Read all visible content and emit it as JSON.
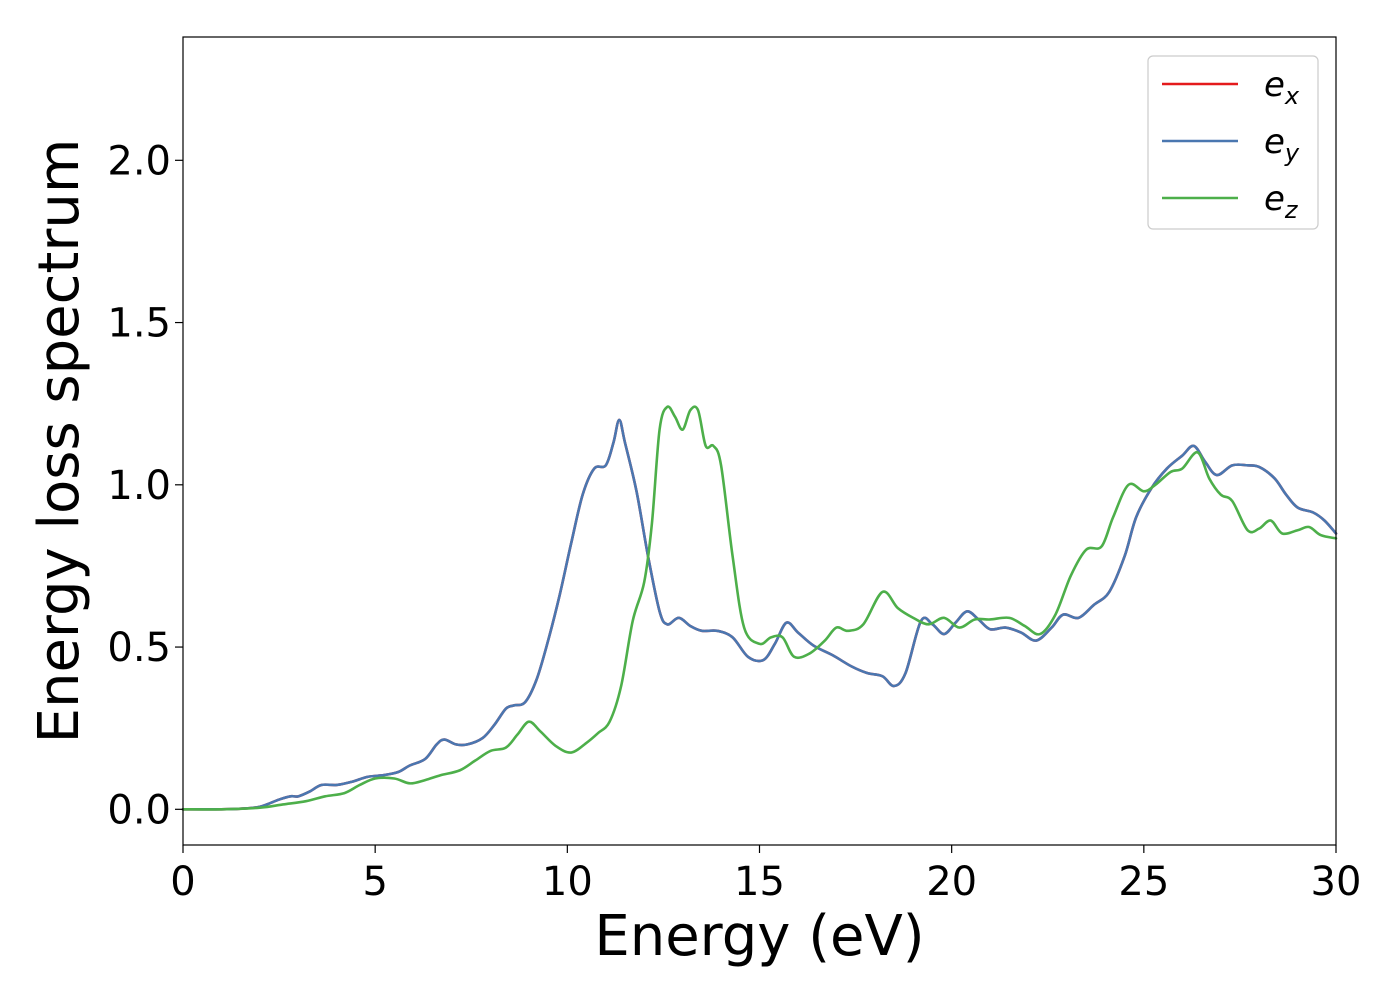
{
  "chart_data": {
    "type": "line",
    "xlabel": "Energy (eV)",
    "ylabel": "Energy loss spectrum",
    "xlim": [
      0,
      30
    ],
    "ylim": [
      -0.11,
      2.38
    ],
    "xticks": [
      "0",
      "5",
      "10",
      "15",
      "20",
      "25",
      "30"
    ],
    "yticks": [
      "0.0",
      "0.5",
      "1.0",
      "1.5",
      "2.0"
    ],
    "grid": false,
    "legend_position": "top-right",
    "series": [
      {
        "name": "e_x",
        "label_base": "e",
        "label_sub": "x",
        "color": "#e41a1c",
        "points": [
          [
            0,
            0
          ],
          [
            1,
            0
          ],
          [
            1.5,
            0.002
          ],
          [
            2,
            0.008
          ],
          [
            2.5,
            0.03
          ],
          [
            2.8,
            0.04
          ],
          [
            3,
            0.04
          ],
          [
            3.3,
            0.055
          ],
          [
            3.6,
            0.075
          ],
          [
            4,
            0.075
          ],
          [
            4.4,
            0.085
          ],
          [
            4.8,
            0.1
          ],
          [
            5.2,
            0.105
          ],
          [
            5.6,
            0.115
          ],
          [
            5.9,
            0.135
          ],
          [
            6.3,
            0.155
          ],
          [
            6.6,
            0.2
          ],
          [
            6.8,
            0.215
          ],
          [
            7.1,
            0.2
          ],
          [
            7.4,
            0.2
          ],
          [
            7.8,
            0.22
          ],
          [
            8.1,
            0.26
          ],
          [
            8.4,
            0.31
          ],
          [
            8.6,
            0.32
          ],
          [
            8.9,
            0.33
          ],
          [
            9.2,
            0.4
          ],
          [
            9.5,
            0.52
          ],
          [
            9.8,
            0.66
          ],
          [
            10.1,
            0.82
          ],
          [
            10.4,
            0.97
          ],
          [
            10.7,
            1.05
          ],
          [
            11,
            1.06
          ],
          [
            11.2,
            1.13
          ],
          [
            11.35,
            1.2
          ],
          [
            11.5,
            1.13
          ],
          [
            11.8,
            0.98
          ],
          [
            12.1,
            0.78
          ],
          [
            12.4,
            0.61
          ],
          [
            12.6,
            0.57
          ],
          [
            12.9,
            0.59
          ],
          [
            13.2,
            0.565
          ],
          [
            13.5,
            0.55
          ],
          [
            13.9,
            0.55
          ],
          [
            14.3,
            0.53
          ],
          [
            14.7,
            0.47
          ],
          [
            15.1,
            0.46
          ],
          [
            15.4,
            0.51
          ],
          [
            15.7,
            0.575
          ],
          [
            16,
            0.545
          ],
          [
            16.4,
            0.505
          ],
          [
            16.9,
            0.475
          ],
          [
            17.4,
            0.44
          ],
          [
            17.8,
            0.42
          ],
          [
            18.2,
            0.41
          ],
          [
            18.5,
            0.38
          ],
          [
            18.8,
            0.42
          ],
          [
            19.2,
            0.58
          ],
          [
            19.5,
            0.57
          ],
          [
            19.8,
            0.54
          ],
          [
            20.1,
            0.575
          ],
          [
            20.4,
            0.61
          ],
          [
            20.7,
            0.585
          ],
          [
            21,
            0.555
          ],
          [
            21.4,
            0.56
          ],
          [
            21.8,
            0.545
          ],
          [
            22.2,
            0.52
          ],
          [
            22.6,
            0.56
          ],
          [
            22.9,
            0.6
          ],
          [
            23.3,
            0.59
          ],
          [
            23.7,
            0.63
          ],
          [
            24.1,
            0.67
          ],
          [
            24.5,
            0.78
          ],
          [
            24.8,
            0.9
          ],
          [
            25.2,
            0.99
          ],
          [
            25.6,
            1.05
          ],
          [
            26,
            1.09
          ],
          [
            26.3,
            1.12
          ],
          [
            26.6,
            1.07
          ],
          [
            26.9,
            1.03
          ],
          [
            27.3,
            1.06
          ],
          [
            27.7,
            1.06
          ],
          [
            28,
            1.055
          ],
          [
            28.4,
            1.02
          ],
          [
            28.7,
            0.97
          ],
          [
            29,
            0.93
          ],
          [
            29.4,
            0.915
          ],
          [
            29.7,
            0.89
          ],
          [
            30,
            0.85
          ]
        ]
      },
      {
        "name": "e_y",
        "label_base": "e",
        "label_sub": "y",
        "color": "#4a77b0",
        "points": [
          [
            0,
            0
          ],
          [
            1,
            0
          ],
          [
            1.5,
            0.002
          ],
          [
            2,
            0.008
          ],
          [
            2.5,
            0.03
          ],
          [
            2.8,
            0.04
          ],
          [
            3,
            0.04
          ],
          [
            3.3,
            0.055
          ],
          [
            3.6,
            0.075
          ],
          [
            4,
            0.075
          ],
          [
            4.4,
            0.085
          ],
          [
            4.8,
            0.1
          ],
          [
            5.2,
            0.105
          ],
          [
            5.6,
            0.115
          ],
          [
            5.9,
            0.135
          ],
          [
            6.3,
            0.155
          ],
          [
            6.6,
            0.2
          ],
          [
            6.8,
            0.215
          ],
          [
            7.1,
            0.2
          ],
          [
            7.4,
            0.2
          ],
          [
            7.8,
            0.22
          ],
          [
            8.1,
            0.26
          ],
          [
            8.4,
            0.31
          ],
          [
            8.6,
            0.32
          ],
          [
            8.9,
            0.33
          ],
          [
            9.2,
            0.4
          ],
          [
            9.5,
            0.52
          ],
          [
            9.8,
            0.66
          ],
          [
            10.1,
            0.82
          ],
          [
            10.4,
            0.97
          ],
          [
            10.7,
            1.05
          ],
          [
            11,
            1.06
          ],
          [
            11.2,
            1.13
          ],
          [
            11.35,
            1.2
          ],
          [
            11.5,
            1.13
          ],
          [
            11.8,
            0.98
          ],
          [
            12.1,
            0.78
          ],
          [
            12.4,
            0.61
          ],
          [
            12.6,
            0.57
          ],
          [
            12.9,
            0.59
          ],
          [
            13.2,
            0.565
          ],
          [
            13.5,
            0.55
          ],
          [
            13.9,
            0.55
          ],
          [
            14.3,
            0.53
          ],
          [
            14.7,
            0.47
          ],
          [
            15.1,
            0.46
          ],
          [
            15.4,
            0.51
          ],
          [
            15.7,
            0.575
          ],
          [
            16,
            0.545
          ],
          [
            16.4,
            0.505
          ],
          [
            16.9,
            0.475
          ],
          [
            17.4,
            0.44
          ],
          [
            17.8,
            0.42
          ],
          [
            18.2,
            0.41
          ],
          [
            18.5,
            0.38
          ],
          [
            18.8,
            0.42
          ],
          [
            19.2,
            0.58
          ],
          [
            19.5,
            0.57
          ],
          [
            19.8,
            0.54
          ],
          [
            20.1,
            0.575
          ],
          [
            20.4,
            0.61
          ],
          [
            20.7,
            0.585
          ],
          [
            21,
            0.555
          ],
          [
            21.4,
            0.56
          ],
          [
            21.8,
            0.545
          ],
          [
            22.2,
            0.52
          ],
          [
            22.6,
            0.56
          ],
          [
            22.9,
            0.6
          ],
          [
            23.3,
            0.59
          ],
          [
            23.7,
            0.63
          ],
          [
            24.1,
            0.67
          ],
          [
            24.5,
            0.78
          ],
          [
            24.8,
            0.9
          ],
          [
            25.2,
            0.99
          ],
          [
            25.6,
            1.05
          ],
          [
            26,
            1.09
          ],
          [
            26.3,
            1.12
          ],
          [
            26.6,
            1.07
          ],
          [
            26.9,
            1.03
          ],
          [
            27.3,
            1.06
          ],
          [
            27.7,
            1.06
          ],
          [
            28,
            1.055
          ],
          [
            28.4,
            1.02
          ],
          [
            28.7,
            0.97
          ],
          [
            29,
            0.93
          ],
          [
            29.4,
            0.915
          ],
          [
            29.7,
            0.89
          ],
          [
            30,
            0.85
          ]
        ]
      },
      {
        "name": "e_z",
        "label_base": "e",
        "label_sub": "z",
        "color": "#4daf4a",
        "points": [
          [
            0,
            0
          ],
          [
            1,
            0
          ],
          [
            2,
            0.005
          ],
          [
            2.6,
            0.015
          ],
          [
            3.2,
            0.025
          ],
          [
            3.7,
            0.04
          ],
          [
            4.2,
            0.05
          ],
          [
            4.6,
            0.075
          ],
          [
            5,
            0.095
          ],
          [
            5.5,
            0.095
          ],
          [
            5.9,
            0.08
          ],
          [
            6.3,
            0.09
          ],
          [
            6.7,
            0.105
          ],
          [
            7.2,
            0.12
          ],
          [
            7.6,
            0.15
          ],
          [
            8,
            0.18
          ],
          [
            8.4,
            0.19
          ],
          [
            8.7,
            0.23
          ],
          [
            9,
            0.27
          ],
          [
            9.3,
            0.24
          ],
          [
            9.7,
            0.195
          ],
          [
            10.1,
            0.175
          ],
          [
            10.5,
            0.205
          ],
          [
            10.8,
            0.235
          ],
          [
            11.1,
            0.27
          ],
          [
            11.4,
            0.38
          ],
          [
            11.7,
            0.58
          ],
          [
            12,
            0.7
          ],
          [
            12.2,
            0.88
          ],
          [
            12.4,
            1.17
          ],
          [
            12.6,
            1.24
          ],
          [
            12.8,
            1.21
          ],
          [
            13,
            1.17
          ],
          [
            13.2,
            1.23
          ],
          [
            13.4,
            1.23
          ],
          [
            13.6,
            1.12
          ],
          [
            13.8,
            1.12
          ],
          [
            14,
            1.06
          ],
          [
            14.3,
            0.78
          ],
          [
            14.6,
            0.56
          ],
          [
            15,
            0.51
          ],
          [
            15.3,
            0.53
          ],
          [
            15.6,
            0.53
          ],
          [
            15.9,
            0.47
          ],
          [
            16.3,
            0.48
          ],
          [
            16.7,
            0.52
          ],
          [
            17,
            0.56
          ],
          [
            17.3,
            0.55
          ],
          [
            17.7,
            0.57
          ],
          [
            18.2,
            0.67
          ],
          [
            18.6,
            0.62
          ],
          [
            19,
            0.59
          ],
          [
            19.4,
            0.57
          ],
          [
            19.8,
            0.59
          ],
          [
            20.2,
            0.56
          ],
          [
            20.6,
            0.585
          ],
          [
            21,
            0.585
          ],
          [
            21.5,
            0.59
          ],
          [
            21.9,
            0.565
          ],
          [
            22.3,
            0.54
          ],
          [
            22.7,
            0.6
          ],
          [
            23.1,
            0.72
          ],
          [
            23.5,
            0.8
          ],
          [
            23.9,
            0.81
          ],
          [
            24.2,
            0.9
          ],
          [
            24.6,
            1
          ],
          [
            25,
            0.98
          ],
          [
            25.3,
            1
          ],
          [
            25.7,
            1.04
          ],
          [
            26,
            1.05
          ],
          [
            26.4,
            1.1
          ],
          [
            26.7,
            1.02
          ],
          [
            27,
            0.97
          ],
          [
            27.3,
            0.95
          ],
          [
            27.7,
            0.86
          ],
          [
            28,
            0.865
          ],
          [
            28.3,
            0.89
          ],
          [
            28.6,
            0.85
          ],
          [
            29,
            0.86
          ],
          [
            29.3,
            0.87
          ],
          [
            29.6,
            0.845
          ],
          [
            30,
            0.835
          ]
        ]
      }
    ]
  }
}
